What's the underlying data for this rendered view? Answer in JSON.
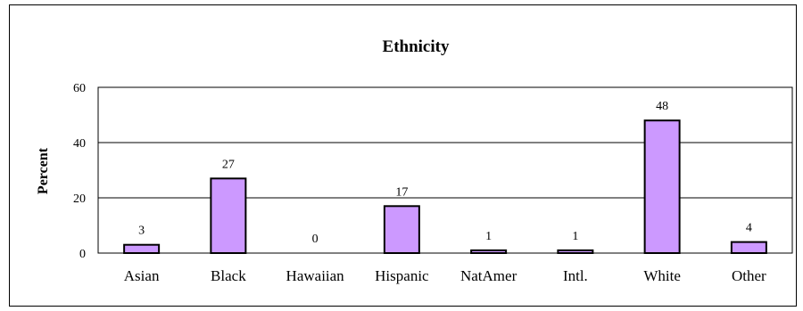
{
  "chart_data": {
    "type": "bar",
    "title": "Ethnicity",
    "xlabel": "",
    "ylabel": "Percent",
    "categories": [
      "Asian",
      "Black",
      "Hawaiian",
      "Hispanic",
      "NatAmer",
      "Intl.",
      "White",
      "Other"
    ],
    "values": [
      3,
      27,
      0,
      17,
      1,
      1,
      48,
      4
    ],
    "ylim": [
      0,
      60
    ],
    "yticks": [
      0,
      20,
      40,
      60
    ],
    "grid": true,
    "legend": "none",
    "bar_color": "#cc99ff",
    "bar_stroke": "#000000"
  }
}
